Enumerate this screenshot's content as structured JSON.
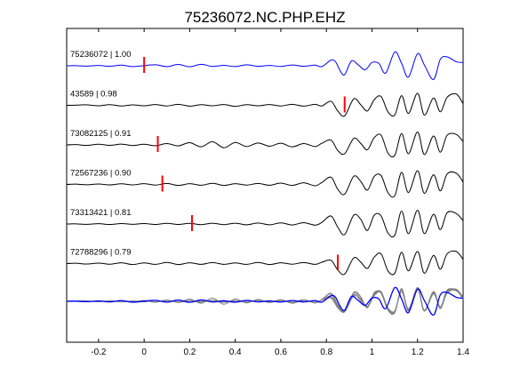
{
  "chart_data": {
    "type": "line",
    "title": "75236072.NC.PHP.EHZ",
    "xlabel": "",
    "ylabel": "",
    "xlim": [
      -0.34,
      1.4
    ],
    "x_ticks": [
      -0.2,
      0,
      0.2,
      0.4,
      0.6,
      0.8,
      1,
      1.2,
      1.4
    ],
    "x_tick_labels": [
      "-0.2",
      "0",
      "0.2",
      "0.4",
      "0.6",
      "0.8",
      "1",
      "1.2",
      "1.4"
    ],
    "y_ticks": [],
    "grid": false,
    "legend": "none",
    "trace_color_reference": "#0000ff",
    "trace_color_other": "#000000",
    "stack_color_other": "#808080",
    "pick_color": "#ff0000",
    "series": [
      {
        "name": "75236072",
        "correlation": "1.00",
        "label": "75236072 | 1.00",
        "pick_time": 0.0,
        "color": "#0000ff",
        "x": [
          -0.34,
          -0.3,
          -0.25,
          -0.2,
          -0.15,
          -0.1,
          -0.05,
          0.0,
          0.05,
          0.1,
          0.15,
          0.2,
          0.25,
          0.3,
          0.35,
          0.4,
          0.45,
          0.5,
          0.55,
          0.6,
          0.65,
          0.7,
          0.75,
          0.78,
          0.82,
          0.84,
          0.86,
          0.88,
          0.91,
          0.94,
          0.97,
          1.0,
          1.03,
          1.06,
          1.1,
          1.13,
          1.16,
          1.2,
          1.23,
          1.27,
          1.3,
          1.33,
          1.37,
          1.4
        ],
        "values": [
          0.0,
          0.01,
          -0.02,
          0.02,
          -0.03,
          0.04,
          -0.05,
          0.01,
          0.06,
          -0.05,
          0.08,
          -0.06,
          0.09,
          -0.04,
          0.03,
          -0.05,
          0.06,
          -0.03,
          0.02,
          -0.04,
          0.05,
          -0.03,
          0.04,
          -0.05,
          0.35,
          0.25,
          -0.3,
          -0.55,
          0.3,
          0.05,
          -0.25,
          0.2,
          0.15,
          -0.45,
          0.85,
          0.15,
          -0.7,
          0.75,
          0.05,
          -0.85,
          0.4,
          0.55,
          0.25,
          0.2
        ]
      },
      {
        "name": "43589",
        "correlation": "0.98",
        "label": "43589 | 0.98",
        "pick_time": 0.88,
        "color": "#000000",
        "x": [
          -0.34,
          -0.3,
          -0.25,
          -0.2,
          -0.15,
          -0.1,
          -0.05,
          0.0,
          0.05,
          0.1,
          0.15,
          0.2,
          0.25,
          0.3,
          0.35,
          0.4,
          0.45,
          0.5,
          0.55,
          0.6,
          0.65,
          0.7,
          0.75,
          0.78,
          0.82,
          0.85,
          0.88,
          0.92,
          0.95,
          0.98,
          1.01,
          1.04,
          1.07,
          1.1,
          1.13,
          1.16,
          1.2,
          1.23,
          1.27,
          1.3,
          1.33,
          1.37,
          1.4
        ],
        "values": [
          0.0,
          0.01,
          0.03,
          -0.03,
          0.04,
          -0.04,
          0.03,
          -0.03,
          0.05,
          -0.04,
          0.06,
          -0.05,
          0.04,
          -0.03,
          0.05,
          -0.06,
          0.04,
          -0.03,
          0.05,
          -0.04,
          0.06,
          -0.05,
          0.06,
          -0.04,
          0.25,
          -0.35,
          -0.65,
          0.4,
          0.05,
          -0.35,
          0.35,
          0.55,
          -0.4,
          -0.6,
          0.6,
          -0.5,
          0.75,
          -0.6,
          0.45,
          -0.4,
          0.5,
          0.7,
          0.1
        ]
      },
      {
        "name": "73082125",
        "correlation": "0.91",
        "label": "73082125 | 0.91",
        "pick_time": 0.06,
        "color": "#000000",
        "x": [
          -0.34,
          -0.3,
          -0.25,
          -0.2,
          -0.15,
          -0.1,
          -0.05,
          0.0,
          0.05,
          0.1,
          0.15,
          0.2,
          0.25,
          0.3,
          0.35,
          0.4,
          0.45,
          0.5,
          0.55,
          0.6,
          0.65,
          0.7,
          0.75,
          0.78,
          0.82,
          0.85,
          0.88,
          0.92,
          0.95,
          0.98,
          1.01,
          1.04,
          1.07,
          1.1,
          1.13,
          1.16,
          1.2,
          1.23,
          1.27,
          1.3,
          1.33,
          1.37,
          1.4
        ],
        "values": [
          0.0,
          0.02,
          -0.03,
          0.04,
          -0.03,
          0.05,
          -0.04,
          0.04,
          -0.05,
          0.08,
          -0.06,
          0.14,
          -0.12,
          0.2,
          -0.18,
          0.15,
          -0.1,
          0.12,
          -0.08,
          0.1,
          -0.12,
          0.08,
          -0.1,
          0.1,
          0.3,
          -0.35,
          -0.55,
          0.4,
          0.1,
          -0.3,
          0.45,
          0.6,
          -0.5,
          -0.65,
          0.7,
          -0.55,
          0.8,
          -0.6,
          0.55,
          -0.45,
          0.6,
          0.65,
          0.2
        ]
      },
      {
        "name": "72567236",
        "correlation": "0.90",
        "label": "72567236 | 0.90",
        "pick_time": 0.08,
        "color": "#000000",
        "x": [
          -0.34,
          -0.3,
          -0.25,
          -0.2,
          -0.15,
          -0.1,
          -0.05,
          0.0,
          0.05,
          0.1,
          0.15,
          0.2,
          0.25,
          0.3,
          0.35,
          0.4,
          0.45,
          0.5,
          0.55,
          0.6,
          0.65,
          0.7,
          0.75,
          0.78,
          0.82,
          0.85,
          0.88,
          0.92,
          0.95,
          0.98,
          1.01,
          1.04,
          1.07,
          1.1,
          1.13,
          1.16,
          1.2,
          1.23,
          1.27,
          1.3,
          1.33,
          1.37,
          1.4
        ],
        "values": [
          0.0,
          0.02,
          -0.02,
          0.03,
          -0.03,
          0.04,
          -0.03,
          0.05,
          -0.04,
          0.06,
          -0.06,
          0.05,
          -0.05,
          0.07,
          -0.06,
          0.05,
          -0.04,
          0.06,
          -0.05,
          0.08,
          -0.06,
          0.1,
          -0.08,
          0.12,
          0.45,
          -0.3,
          -0.6,
          0.5,
          0.2,
          -0.35,
          0.5,
          0.55,
          -0.5,
          -0.7,
          0.75,
          -0.5,
          0.85,
          -0.55,
          0.6,
          -0.4,
          0.65,
          0.7,
          0.15
        ]
      },
      {
        "name": "73313421",
        "correlation": "0.81",
        "label": "73313421 | 0.81",
        "pick_time": 0.21,
        "color": "#000000",
        "x": [
          -0.34,
          -0.3,
          -0.25,
          -0.2,
          -0.15,
          -0.1,
          -0.05,
          0.0,
          0.05,
          0.1,
          0.15,
          0.2,
          0.25,
          0.3,
          0.35,
          0.4,
          0.45,
          0.5,
          0.55,
          0.6,
          0.65,
          0.7,
          0.75,
          0.78,
          0.82,
          0.85,
          0.88,
          0.92,
          0.95,
          0.98,
          1.01,
          1.04,
          1.07,
          1.1,
          1.13,
          1.16,
          1.2,
          1.23,
          1.27,
          1.3,
          1.33,
          1.37,
          1.4
        ],
        "values": [
          0.0,
          0.01,
          -0.02,
          0.02,
          -0.03,
          0.03,
          -0.02,
          0.03,
          -0.03,
          0.04,
          -0.03,
          0.04,
          -0.04,
          0.05,
          -0.04,
          0.05,
          -0.05,
          0.06,
          -0.05,
          0.07,
          -0.06,
          0.08,
          -0.07,
          0.1,
          0.5,
          -0.2,
          -0.65,
          0.55,
          0.3,
          -0.4,
          0.55,
          0.5,
          -0.55,
          -0.7,
          0.8,
          -0.6,
          0.85,
          -0.6,
          0.6,
          -0.35,
          0.7,
          0.65,
          0.2
        ]
      },
      {
        "name": "72788296",
        "correlation": "0.79",
        "label": "72788296 | 0.79",
        "pick_time": 0.85,
        "color": "#000000",
        "x": [
          -0.34,
          -0.3,
          -0.25,
          -0.2,
          -0.15,
          -0.1,
          -0.05,
          0.0,
          0.05,
          0.1,
          0.15,
          0.2,
          0.25,
          0.3,
          0.35,
          0.4,
          0.45,
          0.5,
          0.55,
          0.6,
          0.65,
          0.7,
          0.75,
          0.78,
          0.82,
          0.85,
          0.88,
          0.92,
          0.95,
          0.98,
          1.01,
          1.04,
          1.07,
          1.1,
          1.13,
          1.16,
          1.2,
          1.23,
          1.27,
          1.3,
          1.33,
          1.37,
          1.4
        ],
        "values": [
          0.0,
          0.02,
          -0.03,
          0.03,
          -0.04,
          0.05,
          -0.06,
          0.04,
          -0.05,
          0.07,
          -0.06,
          0.05,
          -0.05,
          0.06,
          -0.05,
          0.04,
          -0.05,
          0.07,
          -0.06,
          0.05,
          -0.04,
          0.06,
          -0.05,
          0.08,
          0.2,
          -0.4,
          -0.65,
          0.35,
          0.1,
          -0.3,
          0.4,
          0.6,
          -0.45,
          -0.6,
          0.7,
          -0.45,
          0.75,
          -0.6,
          0.5,
          -0.35,
          0.6,
          0.75,
          0.25
        ]
      }
    ],
    "stack": {
      "reference_series": "75236072",
      "other_series": [
        "43589",
        "73082125",
        "72567236",
        "73313421",
        "72788296"
      ]
    }
  }
}
